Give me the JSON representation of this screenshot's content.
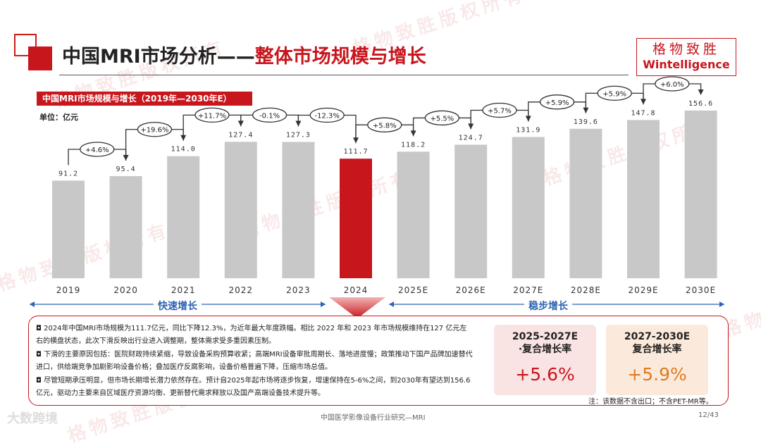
{
  "header": {
    "title_prefix": "中国MRI市场分析——",
    "title_highlight": "整体市场规模与增长",
    "logo_cn": "格物致胜",
    "logo_en": "Wintelligence"
  },
  "watermark": "格物致胜版权所有",
  "chart_subtitle": "中国MRI市场规模与增长（2019年—2030年E）",
  "unit_label": "单位：亿元",
  "colors": {
    "accent": "#c8161d",
    "bar": "#c8c8c8",
    "highlight_bar": "#c8161d",
    "phase_blue": "#2f64b1",
    "orange": "#e07a22"
  },
  "chart_data": {
    "type": "bar",
    "categories": [
      "2019",
      "2020",
      "2021",
      "2022",
      "2023",
      "2024",
      "2025E",
      "2026E",
      "2027E",
      "2028E",
      "2029E",
      "2030E"
    ],
    "values": [
      91.2,
      95.4,
      114.0,
      127.4,
      127.3,
      111.7,
      118.2,
      124.7,
      131.9,
      139.6,
      147.8,
      156.6
    ],
    "value_labels": [
      "91.2",
      "95.4",
      "114.0",
      "127.4",
      "127.3",
      "111.7",
      "118.2",
      "124.7",
      "131.9",
      "139.6",
      "147.8",
      "156.6"
    ],
    "highlight_category": "2024",
    "growth_rates": [
      "+4.6%",
      "+19.6%",
      "+11.7%",
      "-0.1%",
      "-12.3%",
      "+5.8%",
      "+5.5%",
      "+5.7%",
      "+5.9%",
      "+5.9%",
      "+6.0%"
    ],
    "phases": [
      {
        "label": "快速增长",
        "from": "2019",
        "to": "2024"
      },
      {
        "label": "稳步增长",
        "from": "2025E",
        "to": "2030E"
      }
    ]
  },
  "notes": [
    "◘ 2024年中国MRI市场规模为111.7亿元，同比下降12.3%，为近年最大年度跌幅。相比 2022 年和 2023 年市场规模维持在127 亿元左右的横盘状态，此次下滑反映出行业进入调整期，整体需求受多重因素压制。",
    "◘ 下滑的主要原因包括：医院财政持续紧缩，导致设备采购预算收紧；高端MRI设备审批周期长、落地进度慢；政策推动下国产品牌加速替代进口，供给端竞争加剧影响设备价格；叠加医疗反腐影响，设备价格普遍下降，压缩市场总值。",
    "◘ 尽管短期承压明显，但市场长期增长潜力依然存在。预计自2025年起市场将逐步恢复，增速保持在5-6%之间，到2030年有望达到156.6亿元，驱动力主要来自区域医疗资源均衡、更新替代需求释放以及国产高端设备技术提升等。"
  ],
  "cards": [
    {
      "title_line1": "2025-2027E",
      "title_line2": "·复合增长率",
      "value": "+5.6%"
    },
    {
      "title_line1": "2027-2030E",
      "title_line2": "复合增长率",
      "value": "+5.9%"
    }
  ],
  "footnote": "注：该数据不含出口；不含PET-MR等。",
  "footer": {
    "brand": "大数跨境",
    "source": "中国医学影像设备行业研究—MRI",
    "page": "12/43"
  }
}
